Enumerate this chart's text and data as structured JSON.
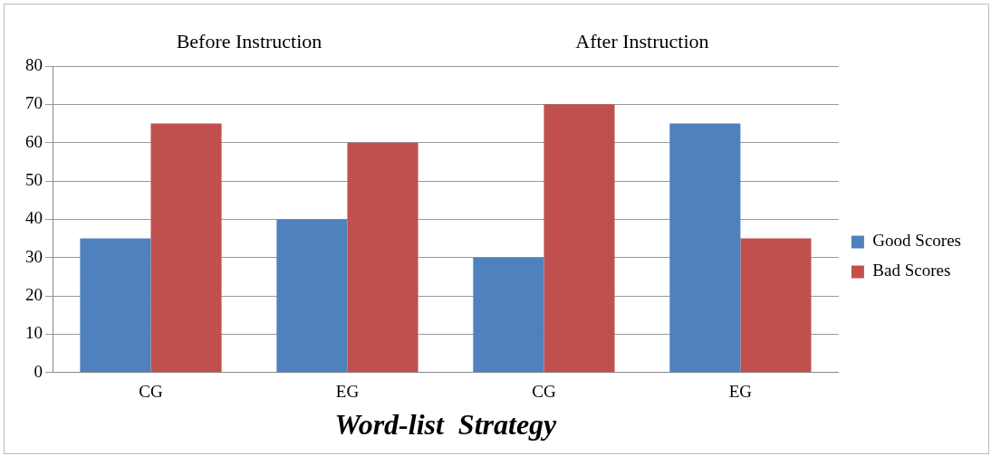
{
  "chart_data": {
    "type": "bar",
    "xlabel": "Word-list  Strategy",
    "categories": [
      "CG",
      "EG",
      "CG",
      "EG"
    ],
    "series": [
      {
        "name": "Good Scores",
        "color": "#4f81bd",
        "values": [
          35,
          40,
          30,
          65
        ]
      },
      {
        "name": "Bad Scores",
        "color": "#c0504d",
        "values": [
          65,
          60,
          70,
          35
        ]
      }
    ],
    "ylim": [
      0,
      80
    ],
    "yticks": [
      0,
      10,
      20,
      30,
      40,
      50,
      60,
      70,
      80
    ],
    "grid": "y",
    "legend": "right",
    "annotations": [
      "Before Instruction",
      "After Instruction"
    ]
  }
}
